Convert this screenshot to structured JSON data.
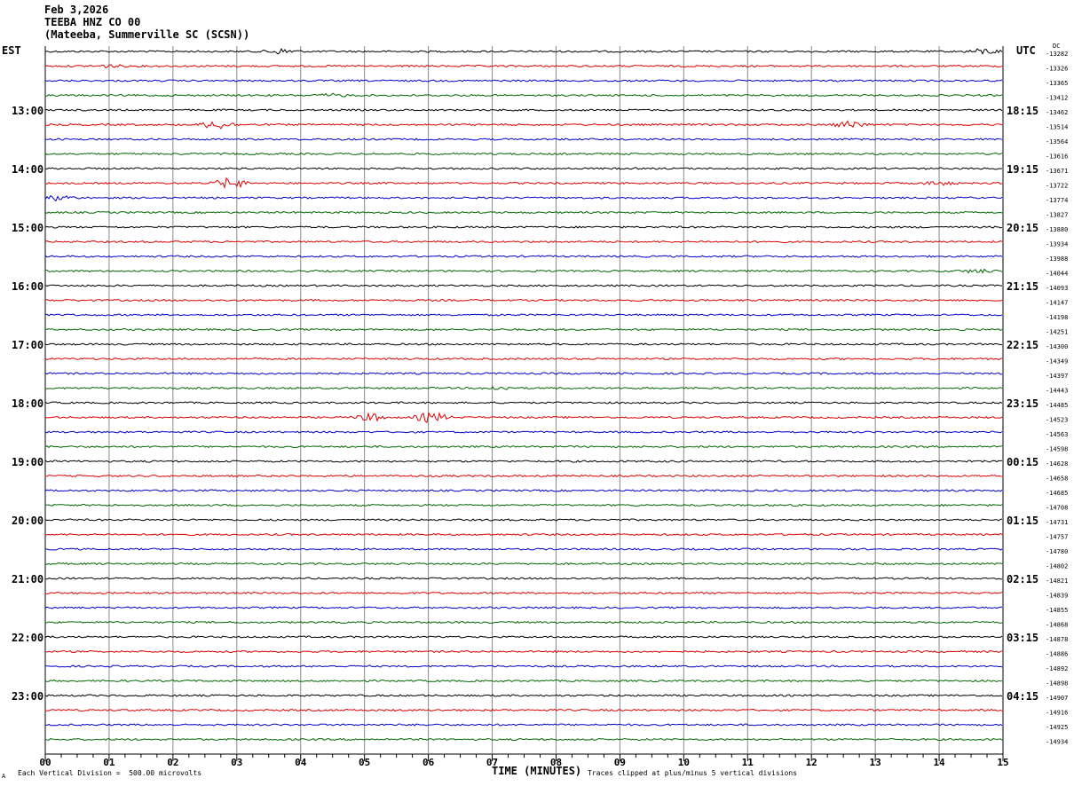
{
  "header": {
    "date": "Feb 3,2026",
    "station": "TEEBA HNZ CO 00",
    "location": "(Mateeba, Summerville SC (SCSN))"
  },
  "chart_data": {
    "type": "line",
    "title": "",
    "xlabel": "TIME (MINUTES)",
    "left_axis_label": "EST",
    "right_axis_label": "UTC",
    "dc_label": "DC",
    "xlim": [
      0,
      15
    ],
    "x_ticks": [
      "00",
      "01",
      "02",
      "03",
      "04",
      "05",
      "06",
      "07",
      "08",
      "09",
      "10",
      "11",
      "12",
      "13",
      "14",
      "15"
    ],
    "grid": true,
    "left_hour_labels": [
      "13:00",
      "14:00",
      "15:00",
      "16:00",
      "17:00",
      "18:00",
      "19:00",
      "20:00",
      "21:00",
      "22:00",
      "23:00"
    ],
    "right_hour_labels": [
      "18:15",
      "19:15",
      "20:15",
      "21:15",
      "22:15",
      "23:15",
      "00:15",
      "01:15",
      "02:15",
      "03:15",
      "04:15"
    ],
    "trace_colors": [
      "#000000",
      "#dd0000",
      "#0000cc",
      "#006600"
    ],
    "dc_offsets": [
      "-13282",
      "-13326",
      "-13365",
      "-13412",
      "-13462",
      "-13514",
      "-13564",
      "-13616",
      "-13671",
      "-13722",
      "-13774",
      "-13827",
      "-13880",
      "-13934",
      "-13988",
      "-14044",
      "-14093",
      "-14147",
      "-14198",
      "-14251",
      "-14300",
      "-14349",
      "-14397",
      "-14443",
      "-14485",
      "-14523",
      "-14563",
      "-14598",
      "-14628",
      "-14658",
      "-14685",
      "-14708",
      "-14731",
      "-14757",
      "-14780",
      "-14802",
      "-14821",
      "-14839",
      "-14855",
      "-14868",
      "-14878",
      "-14886",
      "-14892",
      "-14898",
      "-14907",
      "-14916",
      "-14925",
      "-14934"
    ],
    "events": [
      {
        "trace": 0,
        "x": 3.7,
        "amp": 3
      },
      {
        "trace": 0,
        "x": 14.7,
        "amp": 3
      },
      {
        "trace": 1,
        "x": 1.0,
        "amp": 1.5
      },
      {
        "trace": 3,
        "x": 4.5,
        "amp": 1.5
      },
      {
        "trace": 5,
        "x": 2.7,
        "amp": 5
      },
      {
        "trace": 5,
        "x": 12.6,
        "amp": 4
      },
      {
        "trace": 9,
        "x": 2.9,
        "amp": 6
      },
      {
        "trace": 9,
        "x": 14.0,
        "amp": 2
      },
      {
        "trace": 10,
        "x": 0.2,
        "amp": 3
      },
      {
        "trace": 15,
        "x": 14.6,
        "amp": 2
      },
      {
        "trace": 25,
        "x": 5.1,
        "amp": 4
      },
      {
        "trace": 25,
        "x": 6.05,
        "amp": 6
      },
      {
        "trace": 23,
        "x": 7.1,
        "amp": 2
      }
    ]
  },
  "footer": {
    "vertical_division": "Each Vertical Division =  500.00 microvolts",
    "clip_note": "Traces clipped at plus/minus 5 vertical divisions",
    "corner_mark": "A"
  }
}
